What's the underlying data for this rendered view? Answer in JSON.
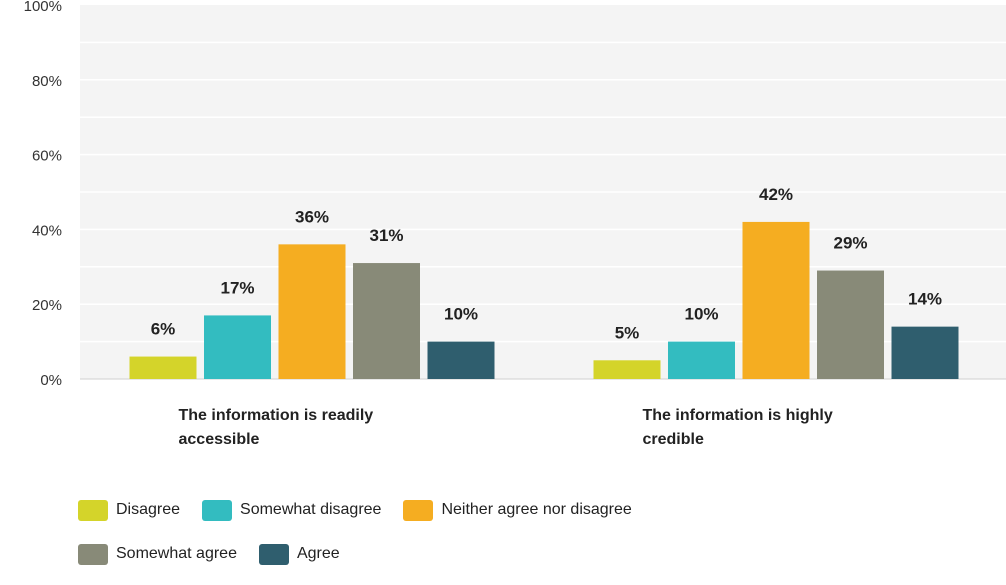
{
  "chart_data": {
    "type": "bar",
    "categories": [
      [
        "The information is readily",
        "accessible"
      ],
      [
        "The information is highly",
        "credible"
      ]
    ],
    "series": [
      {
        "name": "Disagree",
        "color": "#d4d42a",
        "values": [
          6,
          5
        ],
        "labels": [
          "6%",
          "5%"
        ]
      },
      {
        "name": "Somewhat disagree",
        "color": "#33bcc0",
        "values": [
          17,
          10
        ],
        "labels": [
          "17%",
          "10%"
        ]
      },
      {
        "name": "Neither agree nor disagree",
        "color": "#f5ad21",
        "values": [
          36,
          42
        ],
        "labels": [
          "36%",
          "42%"
        ]
      },
      {
        "name": "Somewhat agree",
        "color": "#888a78",
        "values": [
          31,
          29
        ],
        "labels": [
          "31%",
          "29%"
        ]
      },
      {
        "name": "Agree",
        "color": "#2f5e6e",
        "values": [
          10,
          14
        ],
        "labels": [
          "10%",
          "14%"
        ]
      }
    ],
    "ylim": [
      0,
      100
    ],
    "yticks": [
      "0%",
      "20%",
      "40%",
      "60%",
      "80%",
      "100%"
    ],
    "grid": true,
    "legend_position": "bottom-left"
  }
}
